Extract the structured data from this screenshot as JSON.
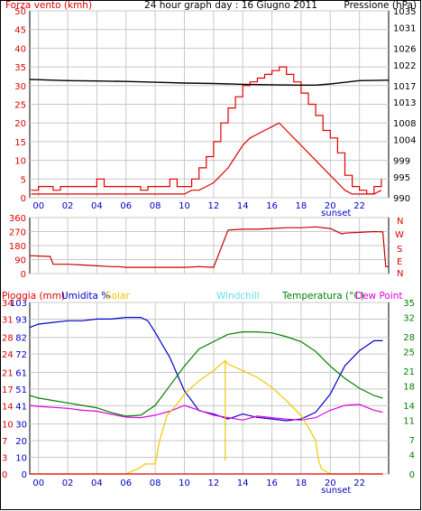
{
  "colors": {
    "wind": "#e00000",
    "gust": "#e00000",
    "windavg": "#0000c8",
    "pressure": "#000000",
    "direction": "#c80000",
    "rain": "#e00000",
    "humidity": "#0000c8",
    "solar": "#f0c800",
    "windchill": "#60e0e0",
    "temperature": "#008000",
    "dewpoint": "#e000e0",
    "grid": "#c8c8c8",
    "frame": "#000000",
    "sunset": "#0000c8"
  },
  "top": {
    "left_title": "Forza vento (kmh)",
    "center_title": "24 hour graph day : 16 Giugno 2011",
    "right_title": "Pressione (hPa)"
  },
  "sunset_label": "sunset",
  "middle": {
    "right_labels": [
      "N",
      "W",
      "S",
      "E",
      "N"
    ]
  },
  "bottom": {
    "legend": [
      {
        "key": "rain",
        "label": "Pioggia (mm)"
      },
      {
        "key": "humidity",
        "label": "Umidita %"
      },
      {
        "key": "solar",
        "label": "Solar"
      },
      {
        "key": "windchill",
        "label": "Windchill"
      },
      {
        "key": "temperature",
        "label": "Temperatura (°C)"
      },
      {
        "key": "dewpoint",
        "label": "Dew Point"
      }
    ]
  },
  "chart_data": [
    {
      "type": "line",
      "panel": "wind-pressure",
      "x_tick_labels": [
        "00",
        "02",
        "04",
        "06",
        "08",
        "10",
        "12",
        "14",
        "16",
        "18",
        "20",
        "22"
      ],
      "xlim": [
        -0.6,
        24
      ],
      "left_axis": {
        "title": "Forza vento (kmh)",
        "ylim": [
          0,
          50
        ],
        "ticks": [
          0,
          5,
          10,
          15,
          20,
          25,
          30,
          35,
          40,
          45,
          50
        ]
      },
      "right_axis": {
        "title": "Pressione (hPa)",
        "ylim": [
          990,
          1035
        ],
        "ticks": [
          990,
          995,
          999,
          1004,
          1008,
          1013,
          1017,
          1022,
          1026,
          1031,
          1035
        ]
      },
      "series": [
        {
          "name": "gust",
          "axis": "left",
          "color_key": "gust",
          "x": [
            -0.5,
            0,
            0.5,
            1,
            1.5,
            2,
            2.5,
            3,
            3.5,
            4,
            4.5,
            5,
            5.5,
            6,
            6.5,
            7,
            7.5,
            8,
            8.5,
            9,
            9.5,
            10,
            10.5,
            11,
            11.5,
            12,
            12.5,
            13,
            13.5,
            14,
            14.5,
            15,
            15.5,
            16,
            16.5,
            17,
            17.5,
            18,
            18.5,
            19,
            19.5,
            20,
            20.5,
            21,
            21.5,
            22,
            22.5,
            23,
            23.5
          ],
          "y": [
            2,
            3,
            3,
            2,
            3,
            3,
            3,
            3,
            3,
            5,
            3,
            3,
            3,
            3,
            3,
            2,
            3,
            3,
            3,
            5,
            3,
            3,
            5,
            8,
            11,
            15,
            20,
            24,
            27,
            30,
            31,
            32,
            33,
            34,
            35,
            33,
            31,
            28,
            25,
            22,
            18,
            16,
            12,
            6,
            3,
            2,
            1,
            3,
            5
          ]
        },
        {
          "name": "wind",
          "axis": "left",
          "color_key": "wind",
          "x": [
            -0.5,
            0,
            0.5,
            1,
            1.5,
            2,
            2.5,
            3,
            3.5,
            4,
            4.5,
            5,
            5.5,
            6,
            6.5,
            7,
            7.5,
            8,
            8.5,
            9,
            9.5,
            10,
            10.5,
            11,
            11.5,
            12,
            12.5,
            13,
            13.5,
            14,
            14.5,
            15,
            15.5,
            16,
            16.5,
            17,
            17.5,
            18,
            18.5,
            19,
            19.5,
            20,
            20.5,
            21,
            21.5,
            22,
            22.5,
            23,
            23.5
          ],
          "y": [
            1,
            1,
            1,
            1,
            1,
            1,
            1,
            1,
            1,
            1,
            1,
            1,
            1,
            1,
            1,
            1,
            1,
            1,
            1,
            1,
            1,
            1,
            2,
            2,
            3,
            4,
            6,
            8,
            11,
            14,
            16,
            17,
            18,
            19,
            20,
            18,
            16,
            14,
            12,
            10,
            8,
            6,
            4,
            2,
            1,
            1,
            1,
            1,
            2
          ]
        },
        {
          "name": "pressure",
          "axis": "right",
          "color_key": "pressure",
          "x": [
            -0.6,
            1,
            2,
            4,
            6,
            8,
            10,
            12,
            14,
            16,
            18,
            19,
            20,
            22,
            24
          ],
          "y": [
            1018.5,
            1018.3,
            1018.2,
            1018.1,
            1018,
            1017.8,
            1017.6,
            1017.5,
            1017.3,
            1017.2,
            1017.1,
            1017.1,
            1017.4,
            1018.2,
            1018.3
          ]
        }
      ]
    },
    {
      "type": "line",
      "panel": "wind-direction",
      "xlim": [
        -0.6,
        24
      ],
      "left_axis": {
        "ylim": [
          0,
          360
        ],
        "ticks": [
          0,
          90,
          180,
          270,
          360
        ]
      },
      "right_axis": {
        "labels": [
          "N",
          "W",
          "S",
          "E",
          "N"
        ]
      },
      "series": [
        {
          "name": "direction",
          "color_key": "direction",
          "x": [
            -0.6,
            0.8,
            1.0,
            2,
            3,
            4,
            5,
            5.5,
            6,
            7,
            8,
            9,
            10,
            11,
            12,
            13,
            14,
            15,
            16,
            17,
            18,
            19,
            20,
            20.8,
            21,
            22,
            23,
            23.6,
            23.8,
            24
          ],
          "y": [
            115,
            110,
            60,
            60,
            55,
            50,
            45,
            45,
            40,
            40,
            40,
            40,
            40,
            45,
            40,
            280,
            285,
            285,
            290,
            295,
            295,
            300,
            290,
            255,
            260,
            265,
            270,
            268,
            45,
            45
          ]
        }
      ]
    },
    {
      "type": "line",
      "panel": "rain-humidity-temperature",
      "xlim": [
        -0.6,
        24
      ],
      "left_axis": {
        "ylim": [
          0,
          103
        ],
        "ticks_rain": [
          0,
          3,
          7,
          10,
          14,
          17,
          21,
          24,
          28,
          31,
          34
        ],
        "ticks_humidity": [
          0,
          10,
          20,
          30,
          41,
          51,
          61,
          72,
          82,
          93,
          103
        ]
      },
      "right_axis": {
        "title": "Temperatura (°C)",
        "ylim": [
          0,
          35
        ],
        "ticks": [
          0,
          4,
          7,
          11,
          14,
          18,
          21,
          25,
          28,
          32,
          35
        ]
      },
      "series": [
        {
          "name": "Umidita %",
          "axis": "humidity",
          "color_key": "humidity",
          "x": [
            -0.6,
            0,
            1,
            2,
            3,
            4,
            5,
            6,
            7,
            7.5,
            8,
            9,
            10,
            11,
            12,
            13,
            14,
            15,
            16,
            17,
            18,
            19,
            20,
            21,
            22,
            23,
            23.6
          ],
          "y": [
            88,
            90,
            91,
            92,
            92,
            93,
            93,
            94,
            94,
            92,
            85,
            70,
            50,
            38,
            36,
            33,
            36,
            34,
            33,
            32,
            33,
            37,
            48,
            65,
            74,
            80,
            80
          ]
        },
        {
          "name": "Temperatura (°C)",
          "axis": "temp",
          "color_key": "temperature",
          "x": [
            -0.6,
            0,
            1,
            2,
            3,
            4,
            5,
            6,
            7,
            8,
            9,
            10,
            11,
            12,
            13,
            14,
            15,
            16,
            17,
            18,
            19,
            20,
            21,
            22,
            23,
            23.6
          ],
          "y": [
            16,
            15.5,
            15,
            14.5,
            14,
            13.5,
            12.5,
            11.8,
            12,
            14,
            18,
            22,
            25.5,
            27,
            28.5,
            29,
            29,
            28.8,
            28,
            27,
            25,
            22,
            19.5,
            17.5,
            16,
            15.5
          ]
        },
        {
          "name": "Dew Point",
          "axis": "temp",
          "color_key": "dewpoint",
          "x": [
            -0.6,
            0,
            1,
            2,
            3,
            4,
            5,
            6,
            7,
            8,
            9,
            10,
            11,
            12,
            13,
            14,
            15,
            16,
            17,
            18,
            19,
            20,
            21,
            22,
            23,
            23.6
          ],
          "y": [
            14,
            13.8,
            13.6,
            13.4,
            13,
            12.8,
            12.2,
            11.6,
            11.5,
            12,
            12.8,
            14,
            13,
            12,
            11.5,
            11,
            11.8,
            11.5,
            11.2,
            11,
            11.5,
            13,
            14,
            14.2,
            13,
            12.6
          ]
        },
        {
          "name": "Solar",
          "axis": "humidity",
          "color_key": "solar",
          "x": [
            -0.6,
            6,
            6.5,
            7,
            7.3,
            8,
            8.3,
            8.8,
            9.5,
            10,
            11,
            12,
            12.5,
            12.8,
            12.8,
            12.8,
            13,
            14,
            15,
            16,
            17,
            18,
            18.5,
            19,
            19.2,
            19.4,
            20,
            21,
            23.6
          ],
          "y": [
            0,
            0,
            2,
            4,
            6,
            6,
            20,
            35,
            42,
            48,
            56,
            62,
            66,
            68,
            8,
            68,
            66,
            62,
            58,
            52,
            44,
            35,
            28,
            20,
            8,
            3,
            0,
            0,
            0
          ]
        },
        {
          "name": "Pioggia (mm)",
          "axis": "rain",
          "color_key": "rain",
          "x": [
            -0.6,
            23.6
          ],
          "y": [
            0,
            0
          ]
        }
      ]
    }
  ]
}
